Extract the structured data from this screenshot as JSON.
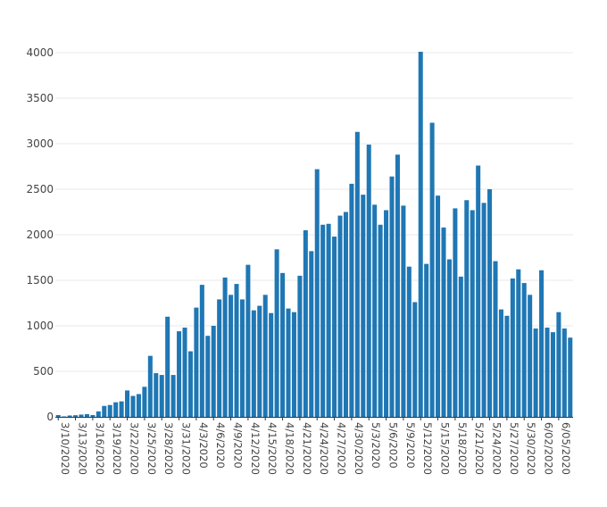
{
  "chart_data": {
    "type": "bar",
    "title": "",
    "xlabel": "",
    "ylabel": "",
    "ylim": [
      0,
      4000
    ],
    "yticks": [
      0,
      500,
      1000,
      1500,
      2000,
      2500,
      3000,
      3500,
      4000
    ],
    "grid": true,
    "legend": "none",
    "bar_color": "#1f77b4",
    "categories": [
      "3/10/2020",
      "3/11/2020",
      "3/12/2020",
      "3/13/2020",
      "3/14/2020",
      "3/15/2020",
      "3/16/2020",
      "3/17/2020",
      "3/18/2020",
      "3/19/2020",
      "3/20/2020",
      "3/21/2020",
      "3/22/2020",
      "3/23/2020",
      "3/24/2020",
      "3/25/2020",
      "3/26/2020",
      "3/27/2020",
      "3/28/2020",
      "3/29/2020",
      "3/30/2020",
      "3/31/2020",
      "4/1/2020",
      "4/2/2020",
      "4/3/2020",
      "4/4/2020",
      "4/5/2020",
      "4/6/2020",
      "4/7/2020",
      "4/8/2020",
      "4/9/2020",
      "4/10/2020",
      "4/11/2020",
      "4/12/2020",
      "4/13/2020",
      "4/14/2020",
      "4/15/2020",
      "4/16/2020",
      "4/17/2020",
      "4/18/2020",
      "4/19/2020",
      "4/20/2020",
      "4/21/2020",
      "4/22/2020",
      "4/23/2020",
      "4/24/2020",
      "4/25/2020",
      "4/26/2020",
      "4/27/2020",
      "4/28/2020",
      "4/29/2020",
      "4/30/2020",
      "5/1/2020",
      "5/2/2020",
      "5/3/2020",
      "5/4/2020",
      "5/5/2020",
      "5/6/2020",
      "5/7/2020",
      "5/8/2020",
      "5/9/2020",
      "5/10/2020",
      "5/11/2020",
      "5/12/2020",
      "5/13/2020",
      "5/14/2020",
      "5/15/2020",
      "5/16/2020",
      "5/17/2020",
      "5/18/2020",
      "5/19/2020",
      "5/20/2020",
      "5/21/2020",
      "5/22/2020",
      "5/23/2020",
      "5/24/2020",
      "5/25/2020",
      "5/26/2020",
      "5/27/2020",
      "5/28/2020",
      "5/29/2020",
      "5/30/2020",
      "5/31/2020",
      "6/1/2020",
      "6/2/2020",
      "6/3/2020",
      "6/4/2020",
      "6/5/2020",
      "6/6/2020",
      "6/7/2020"
    ],
    "tick_labels": [
      "3/10/2020",
      "3/13/2020",
      "3/16/2020",
      "3/19/2020",
      "3/22/2020",
      "3/25/2020",
      "3/28/2020",
      "3/31/2020",
      "4/3/2020",
      "4/6/2020",
      "4/9/2020",
      "4/12/2020",
      "4/15/2020",
      "4/18/2020",
      "4/21/2020",
      "4/24/2020",
      "4/27/2020",
      "4/30/2020",
      "5/3/2020",
      "5/6/2020",
      "5/9/2020",
      "5/12/2020",
      "5/15/2020",
      "5/18/2020",
      "5/21/2020",
      "5/24/2020",
      "5/27/2020",
      "5/30/2020",
      "6/02/2020",
      "6/05/2020"
    ],
    "values": [
      20,
      5,
      15,
      18,
      25,
      30,
      20,
      60,
      120,
      130,
      160,
      170,
      290,
      230,
      250,
      330,
      670,
      480,
      460,
      1100,
      460,
      940,
      980,
      720,
      1200,
      1450,
      890,
      1000,
      1290,
      1530,
      1340,
      1460,
      1290,
      1670,
      1170,
      1220,
      1340,
      1140,
      1840,
      1580,
      1190,
      1150,
      1550,
      2050,
      1820,
      2720,
      2110,
      2120,
      1980,
      2210,
      2250,
      2560,
      3130,
      2440,
      2990,
      2330,
      2110,
      2270,
      2640,
      2880,
      2320,
      1650,
      1260,
      4010,
      1680,
      3230,
      2430,
      2080,
      1730,
      2290,
      1540,
      2380,
      2270,
      2760,
      2350,
      2500,
      1710,
      1180,
      1110,
      1520,
      1620,
      1470,
      1340,
      970,
      1610,
      980,
      930,
      1150,
      970,
      870
    ]
  }
}
